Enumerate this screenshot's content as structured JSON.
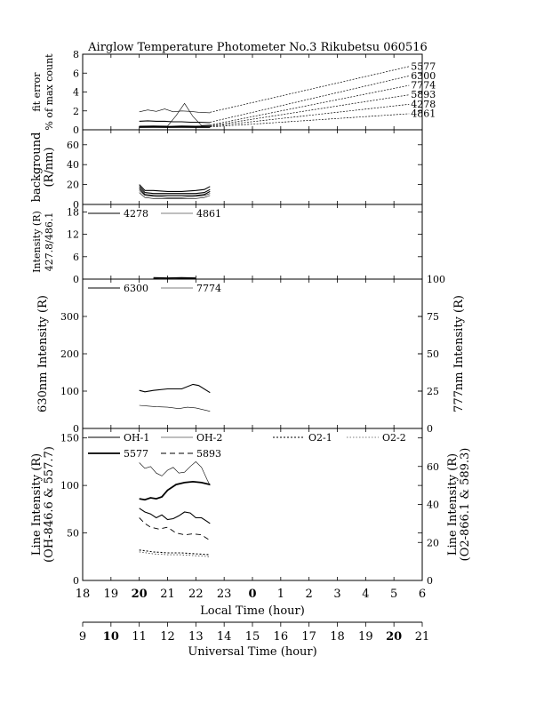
{
  "chart_data": {
    "type": "line",
    "title": "Airglow Temperature Photometer No.3  Rikubetsu  060516",
    "x_axes": {
      "local": {
        "label": "Local Time (hour)",
        "ticks": [
          "18",
          "19",
          "20",
          "21",
          "22",
          "23",
          "0",
          "1",
          "2",
          "3",
          "4",
          "5",
          "6"
        ],
        "bold_ticks": [
          "20",
          "0"
        ]
      },
      "universal": {
        "label": "Universal Time (hour)",
        "ticks": [
          "9",
          "10",
          "11",
          "12",
          "13",
          "14",
          "15",
          "16",
          "17",
          "18",
          "19",
          "20",
          "21"
        ],
        "bold_ticks": [
          "10",
          "20"
        ]
      }
    },
    "panels": [
      {
        "id": "fit-error",
        "ylabel_lines": [
          "fit error",
          "% of max count"
        ],
        "ylim": [
          0,
          8
        ],
        "yticks": [
          0,
          2,
          4,
          6,
          8
        ],
        "series": [
          {
            "name": "5577",
            "x": [
              20.0,
              20.3,
              20.6,
              20.9,
              21.2,
              21.5,
              21.8,
              22.1,
              22.5
            ],
            "values": [
              1.9,
              2.1,
              1.95,
              2.2,
              1.9,
              2.0,
              1.95,
              1.85,
              1.8
            ],
            "style": "solid-thin"
          },
          {
            "name": "6300",
            "x": [
              20.0,
              20.3,
              20.6,
              20.9,
              21.2,
              21.5,
              21.8,
              22.1,
              22.5
            ],
            "values": [
              0.9,
              0.95,
              0.9,
              0.9,
              0.85,
              0.85,
              0.8,
              0.8,
              0.75
            ],
            "style": "solid"
          },
          {
            "name": "7774",
            "x": [
              20.0,
              20.5,
              21.0,
              21.3,
              21.6,
              21.9,
              22.2,
              22.5
            ],
            "values": [
              0.4,
              0.42,
              0.4,
              1.5,
              2.8,
              1.4,
              0.45,
              0.5
            ],
            "style": "solid-thin"
          },
          {
            "name": "5893",
            "x": [
              20.0,
              20.5,
              21.0,
              21.5,
              22.0,
              22.5
            ],
            "values": [
              0.35,
              0.38,
              0.35,
              0.4,
              0.38,
              0.4
            ],
            "style": "solid"
          },
          {
            "name": "4278",
            "x": [
              20.0,
              20.5,
              21.0,
              21.5,
              22.0,
              22.5
            ],
            "values": [
              0.3,
              0.32,
              0.3,
              0.3,
              0.32,
              0.3
            ],
            "style": "solid-thin"
          },
          {
            "name": "4861",
            "x": [
              20.0,
              20.5,
              21.0,
              21.5,
              22.0,
              22.5
            ],
            "values": [
              0.25,
              0.26,
              0.25,
              0.26,
              0.25,
              0.25
            ],
            "style": "solid"
          }
        ],
        "annotations": [
          {
            "text": "5577",
            "from": [
              22.5,
              1.85
            ],
            "to": [
              29.6,
              6.7
            ]
          },
          {
            "text": "6300",
            "from": [
              22.5,
              0.8
            ],
            "to": [
              29.6,
              5.7
            ]
          },
          {
            "text": "7774",
            "from": [
              22.5,
              0.5
            ],
            "to": [
              29.6,
              4.7
            ]
          },
          {
            "text": "5893",
            "from": [
              22.5,
              0.42
            ],
            "to": [
              29.6,
              3.7
            ]
          },
          {
            "text": "4278",
            "from": [
              22.5,
              0.36
            ],
            "to": [
              29.6,
              2.7
            ]
          },
          {
            "text": "4861",
            "from": [
              22.5,
              0.3
            ],
            "to": [
              29.6,
              1.7
            ]
          }
        ]
      },
      {
        "id": "background",
        "ylabel_lines": [
          "background",
          "(R/nm)"
        ],
        "ylim": [
          0,
          75
        ],
        "yticks": [
          0,
          20,
          40,
          60
        ],
        "series": [
          {
            "x": [
              20.0,
              20.2,
              20.5,
              21.0,
              21.5,
              22.0,
              22.3,
              22.5
            ],
            "values": [
              20,
              14,
              14,
              13,
              13,
              14,
              15,
              18
            ],
            "style": "solid"
          },
          {
            "x": [
              20.0,
              20.2,
              20.5,
              21.0,
              21.5,
              22.0,
              22.3,
              22.5
            ],
            "values": [
              18,
              12,
              11,
              11,
              11,
              11,
              12,
              15
            ],
            "style": "solid"
          },
          {
            "x": [
              20.0,
              20.2,
              20.5,
              21.0,
              21.5,
              22.0,
              22.3,
              22.5
            ],
            "values": [
              16,
              10,
              9,
              9,
              9,
              9,
              10,
              13
            ],
            "style": "solid"
          },
          {
            "x": [
              20.0,
              20.2,
              20.5,
              21.0,
              21.5,
              22.0,
              22.3,
              22.5
            ],
            "values": [
              14,
              9,
              8,
              7,
              7,
              8,
              9,
              11
            ],
            "style": "solid-thin"
          },
          {
            "x": [
              20.0,
              20.2,
              20.5,
              21.0,
              21.5,
              22.0,
              22.3,
              22.5
            ],
            "values": [
              12,
              7,
              6,
              6,
              6,
              6,
              7,
              9
            ],
            "style": "solid-thin"
          }
        ]
      },
      {
        "id": "intensity-427-486",
        "ylabel_lines": [
          "Intensity (R)",
          "427.8/486.1"
        ],
        "ylim": [
          0,
          20
        ],
        "yticks": [
          0,
          6,
          12,
          18
        ],
        "legend": [
          {
            "name": "4278",
            "style": "solid"
          },
          {
            "name": "4861",
            "style": "solid-thin"
          }
        ],
        "series": [
          {
            "name": "4278",
            "x": [
              20.5,
              21.0,
              21.5,
              22.0
            ],
            "values": [
              0.4,
              0.3,
              0.4,
              0.3
            ],
            "style": "solid"
          },
          {
            "name": "4861",
            "x": [
              20.5,
              21.0,
              21.5,
              22.0
            ],
            "values": [
              0.2,
              0.25,
              0.2,
              0.2
            ],
            "style": "solid-thin"
          }
        ]
      },
      {
        "id": "intensity-630-777",
        "ylabel_lines": [
          "630nm Intensity (R)"
        ],
        "ylabel_right_lines": [
          "777nm Intensity (R)"
        ],
        "ylim": [
          0,
          400
        ],
        "yticks": [
          0,
          100,
          200,
          300
        ],
        "ylim_right": [
          0,
          100
        ],
        "yticks_right": [
          0,
          25,
          50,
          75,
          100
        ],
        "legend": [
          {
            "name": "6300",
            "style": "solid"
          },
          {
            "name": "7774",
            "style": "solid-thin"
          }
        ],
        "series": [
          {
            "name": "6300",
            "axis": "left",
            "x": [
              20.0,
              20.2,
              20.5,
              21.0,
              21.5,
              21.9,
              22.1,
              22.5
            ],
            "values": [
              102,
              98,
              102,
              106,
              106,
              118,
              115,
              96
            ],
            "style": "solid"
          },
          {
            "name": "7774",
            "axis": "left",
            "x": [
              20.0,
              20.3,
              20.6,
              21.0,
              21.4,
              21.7,
              22.0,
              22.5
            ],
            "values": [
              62,
              60,
              58,
              57,
              53,
              57,
              55,
              46
            ],
            "style": "solid-thin"
          }
        ]
      },
      {
        "id": "line-intensity",
        "ylabel_lines": [
          "Line Intensity (R)",
          "(OH-846.6 & 557.7)"
        ],
        "ylabel_right_lines": [
          "Line Intensity (R)",
          "(O2-866.1 & 589.3)"
        ],
        "ylim": [
          0,
          160
        ],
        "yticks": [
          0,
          50,
          100,
          150
        ],
        "ylim_right": [
          0,
          80
        ],
        "yticks_right": [
          0,
          20,
          40,
          60
        ],
        "legend": [
          {
            "name": "OH-1",
            "style": "solid"
          },
          {
            "name": "OH-2",
            "style": "solid-thin"
          },
          {
            "name": "O2-1",
            "style": "dotted"
          },
          {
            "name": "O2-2",
            "style": "dotted-thin"
          },
          {
            "name": "5577",
            "style": "solid-thick"
          },
          {
            "name": "5893",
            "style": "dashed"
          }
        ],
        "series": [
          {
            "name": "OH-2",
            "x": [
              20.0,
              20.2,
              20.4,
              20.6,
              20.8,
              21.0,
              21.2,
              21.4,
              21.6,
              21.8,
              22.0,
              22.2,
              22.4,
              22.5
            ],
            "values": [
              124,
              118,
              120,
              113,
              110,
              116,
              119,
              113,
              114,
              120,
              125,
              119,
              106,
              100
            ],
            "style": "solid-thin"
          },
          {
            "name": "5577",
            "x": [
              20.0,
              20.2,
              20.4,
              20.6,
              20.8,
              21.0,
              21.3,
              21.6,
              21.9,
              22.2,
              22.5
            ],
            "values": [
              86,
              85,
              87,
              86,
              88,
              95,
              101,
              103,
              104,
              103,
              101
            ],
            "style": "solid-thick"
          },
          {
            "name": "OH-1",
            "x": [
              20.0,
              20.2,
              20.4,
              20.6,
              20.8,
              21.0,
              21.2,
              21.4,
              21.6,
              21.8,
              22.0,
              22.2,
              22.4,
              22.5
            ],
            "values": [
              76,
              72,
              70,
              66,
              69,
              64,
              65,
              68,
              72,
              71,
              66,
              66,
              62,
              60
            ],
            "style": "solid"
          },
          {
            "name": "5893",
            "x": [
              20.0,
              20.2,
              20.4,
              20.7,
              21.0,
              21.3,
              21.6,
              21.9,
              22.2,
              22.5
            ],
            "values": [
              66,
              60,
              56,
              54,
              56,
              50,
              48,
              49,
              48,
              42
            ],
            "style": "dashed"
          },
          {
            "name": "O2-1",
            "x": [
              20.0,
              20.5,
              21.0,
              21.5,
              22.0,
              22.5
            ],
            "values": [
              32,
              30,
              29,
              29,
              28,
              27
            ],
            "style": "dotted"
          },
          {
            "name": "O2-2",
            "x": [
              20.0,
              20.5,
              21.0,
              21.5,
              22.0,
              22.5
            ],
            "values": [
              30,
              28,
              27,
              27,
              26,
              25
            ],
            "style": "dotted-thin"
          }
        ]
      }
    ]
  }
}
